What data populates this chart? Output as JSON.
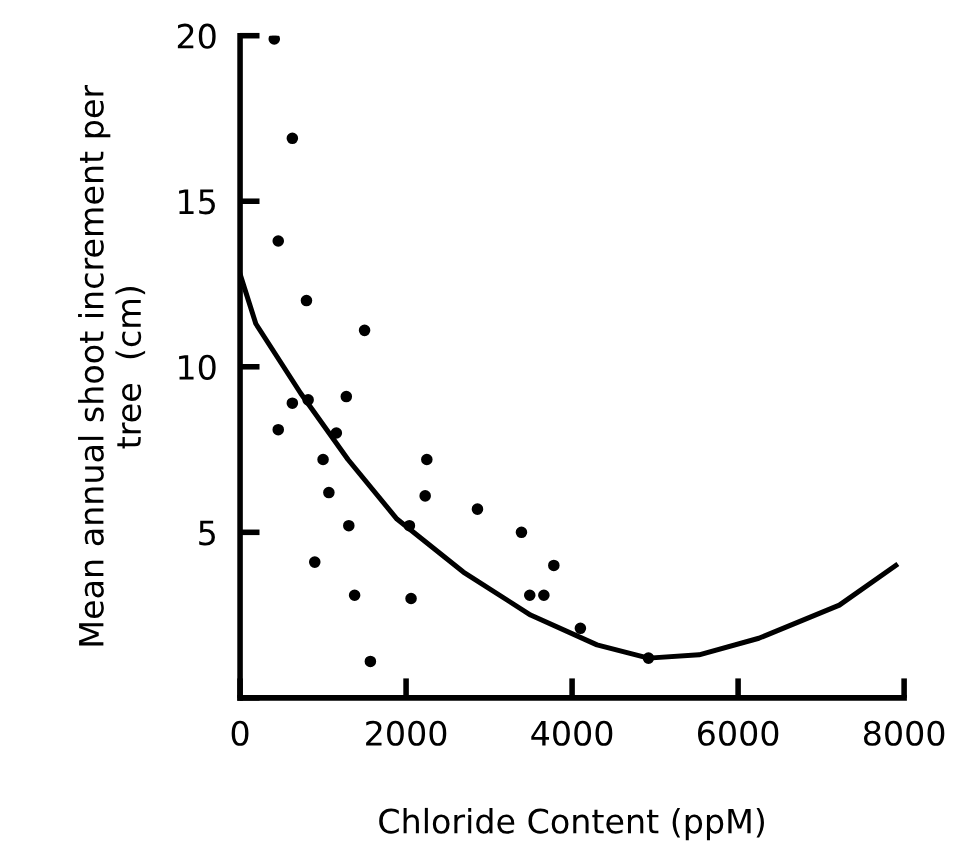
{
  "chart_data": {
    "type": "scatter",
    "xlabel": "Chloride Content (ppM)",
    "ylabel": "Mean annual shoot increment per\ntree  (cm)",
    "xlim": [
      0,
      8000
    ],
    "ylim": [
      0,
      20
    ],
    "xticks": [
      0,
      2000,
      4000,
      6000,
      8000
    ],
    "yticks": [
      {
        "value": 0,
        "label": null
      },
      5,
      10,
      15,
      20
    ],
    "marker": "circle",
    "grid": false,
    "legend": false,
    "series": [
      {
        "color": "#000000",
        "x": [
          412,
          630,
          460,
          800,
          1500,
          630,
          820,
          1280,
          460,
          1160,
          1000,
          1070,
          1310,
          900,
          1380,
          1570,
          2040,
          2060,
          2250,
          2230,
          2860,
          3390,
          3490,
          3660,
          3780,
          4100,
          4920
        ],
        "values": [
          19.9,
          16.9,
          13.8,
          12.0,
          11.1,
          8.9,
          9.0,
          9.1,
          8.1,
          8.0,
          7.2,
          6.2,
          5.2,
          4.1,
          3.1,
          1.1,
          5.2,
          3.0,
          7.2,
          6.1,
          5.7,
          5.0,
          3.1,
          3.1,
          4.0,
          2.1,
          1.2
        ]
      },
      {
        "type": "line",
        "color": "#000000",
        "line_style": "solid",
        "marker": "none",
        "x": [
          0,
          190,
          730,
          1300,
          1890,
          2690,
          3500,
          4300,
          4920,
          5530,
          6250,
          7220,
          7900
        ],
        "values": [
          12.8,
          11.3,
          9.2,
          7.2,
          5.4,
          3.8,
          2.5,
          1.6,
          1.2,
          1.3,
          1.8,
          2.8,
          4.0
        ]
      }
    ]
  }
}
